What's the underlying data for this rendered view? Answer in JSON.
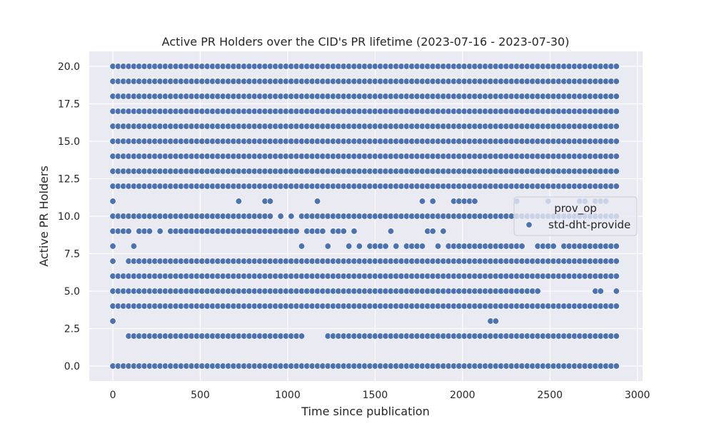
{
  "chart_data": {
    "type": "scatter",
    "title": "Active PR Holders over the CID's PR lifetime (2023-07-16 - 2023-07-30)",
    "xlabel": "Time since publication",
    "ylabel": "Active PR Holders",
    "xlim": [
      -135,
      3030
    ],
    "ylim": [
      -1.0,
      21.0
    ],
    "x_ticks": [
      0,
      500,
      1000,
      1500,
      2000,
      2500,
      3000
    ],
    "y_ticks": [
      0.0,
      2.5,
      5.0,
      7.5,
      10.0,
      12.5,
      15.0,
      17.5,
      20.0
    ],
    "x_tick_labels": [
      "0",
      "500",
      "1000",
      "1500",
      "2000",
      "2500",
      "3000"
    ],
    "y_tick_labels": [
      "0.0",
      "2.5",
      "5.0",
      "7.5",
      "10.0",
      "12.5",
      "15.0",
      "17.5",
      "20.0"
    ],
    "grid": true,
    "legend": {
      "title": "prov_op",
      "placement": "right"
    },
    "sample_interval": 30,
    "x_max": 2880,
    "series": [
      {
        "name": "std-dht-provide",
        "color": "#4c72b0",
        "full_levels": [
          0,
          4,
          6,
          12,
          13,
          14,
          15,
          16,
          17,
          18,
          19,
          20
        ],
        "segments": [
          {
            "y": 2,
            "ranges": [
              [
                90,
                1080
              ],
              [
                1230,
                2880
              ]
            ]
          },
          {
            "y": 3,
            "points": [
              0,
              2160,
              2190
            ]
          },
          {
            "y": 5,
            "ranges": [
              [
                0,
                2430
              ]
            ],
            "points": [
              2760,
              2790,
              2880
            ]
          },
          {
            "y": 7,
            "ranges": [
              [
                90,
                2880
              ]
            ],
            "points": [
              0
            ]
          },
          {
            "y": 8,
            "points": [
              0,
              120,
              1080,
              1230,
              1350,
              1410,
              1470,
              1500,
              1530,
              1560,
              1620,
              1680,
              1710,
              1740,
              1770,
              1860
            ],
            "ranges": [
              [
                1920,
                2340
              ],
              [
                2430,
                2520
              ],
              [
                2580,
                2880
              ]
            ]
          },
          {
            "y": 9,
            "points": [
              0,
              30,
              60,
              90,
              150,
              180,
              210,
              270,
              1110,
              1140,
              1170,
              1200,
              1260,
              1290,
              1320,
              1380,
              1590,
              1800,
              1830,
              1890
            ],
            "ranges": [
              [
                330,
                1050
              ]
            ]
          },
          {
            "y": 10,
            "ranges": [
              [
                0,
                900
              ],
              [
                1080,
                2880
              ]
            ],
            "points": [
              960,
              1020
            ]
          },
          {
            "y": 11,
            "points": [
              0,
              720,
              870,
              900,
              1170,
              1770,
              1830,
              1950,
              1980,
              2010,
              2040,
              2070,
              2310,
              2490,
              2670,
              2700,
              2760,
              2790,
              2820
            ]
          }
        ]
      }
    ]
  }
}
